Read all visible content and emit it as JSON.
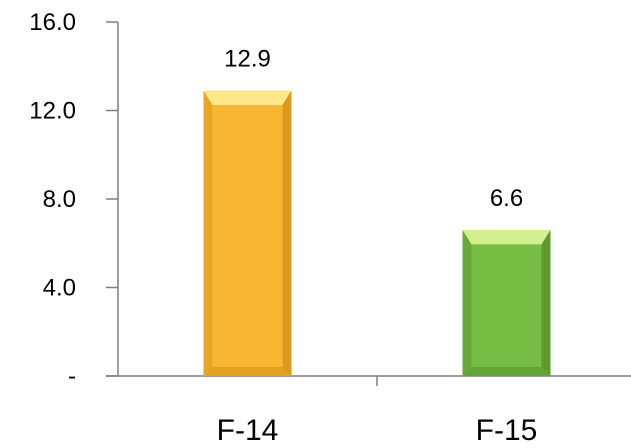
{
  "chart_data": {
    "type": "bar",
    "categories": [
      "F-14",
      "F-15"
    ],
    "values": [
      12.9,
      6.6
    ],
    "data_labels": [
      "12.9",
      "6.6"
    ],
    "ylim": [
      0,
      16
    ],
    "yticks": [
      0,
      4,
      8,
      12,
      16
    ],
    "ytick_labels": [
      "-",
      "4.0",
      "8.0",
      "12.0",
      "16.0"
    ],
    "grid": false,
    "legend": "none",
    "title": "",
    "xlabel": "",
    "ylabel": "",
    "colors": {
      "F-14": {
        "face": "#f7b733",
        "highlight": "#fde98a",
        "shadow": "#d99a1e"
      },
      "F-15": {
        "face": "#77bc43",
        "highlight": "#d4ef8e",
        "shadow": "#5c9a2e"
      }
    }
  }
}
